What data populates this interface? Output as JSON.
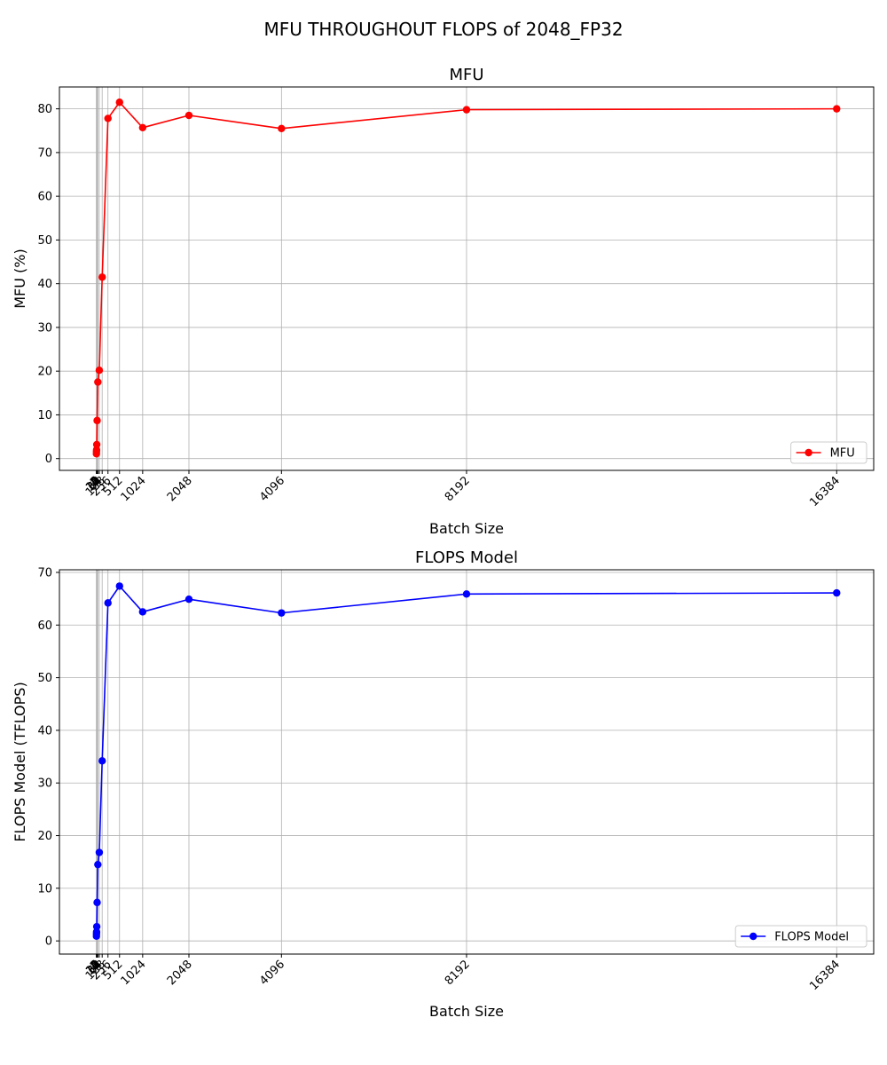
{
  "figure": {
    "suptitle": "MFU THROUGHOUT FLOPS of 2048_FP32"
  },
  "chart_data": [
    {
      "type": "line",
      "title": "MFU",
      "xlabel": "Batch Size",
      "ylabel": "MFU (%)",
      "x": [
        1,
        2,
        4,
        8,
        16,
        32,
        64,
        128,
        256,
        512,
        1024,
        2048,
        4096,
        8192,
        16384
      ],
      "x_ticks": [
        1,
        2,
        4,
        8,
        16,
        32,
        64,
        128,
        256,
        512,
        1024,
        2048,
        4096,
        8192,
        16384
      ],
      "ylim": [
        -2.7,
        85
      ],
      "y_ticks": [
        0,
        10,
        20,
        30,
        40,
        50,
        60,
        70,
        80
      ],
      "grid": true,
      "legend_position": "lower-right",
      "series": [
        {
          "name": "MFU",
          "color": "#ff0000",
          "values": [
            1.1,
            1.6,
            2.0,
            3.2,
            8.7,
            17.5,
            20.2,
            41.5,
            77.8,
            81.5,
            75.7,
            78.5,
            75.5,
            79.8,
            80.0
          ]
        }
      ]
    },
    {
      "type": "line",
      "title": "FLOPS Model",
      "xlabel": "Batch Size",
      "ylabel": "FLOPS Model (TFLOPS)",
      "x": [
        1,
        2,
        4,
        8,
        16,
        32,
        64,
        128,
        256,
        512,
        1024,
        2048,
        4096,
        8192,
        16384
      ],
      "x_ticks": [
        1,
        2,
        4,
        8,
        16,
        32,
        64,
        128,
        256,
        512,
        1024,
        2048,
        4096,
        8192,
        16384
      ],
      "ylim": [
        -2.5,
        70.5
      ],
      "y_ticks": [
        0,
        10,
        20,
        30,
        40,
        50,
        60,
        70
      ],
      "grid": true,
      "legend_position": "lower-right",
      "series": [
        {
          "name": "FLOPS Model",
          "color": "#0000ff",
          "values": [
            0.9,
            1.3,
            1.7,
            2.7,
            7.3,
            14.5,
            16.8,
            34.2,
            64.2,
            67.4,
            62.5,
            64.9,
            62.3,
            65.9,
            66.1
          ]
        }
      ]
    }
  ]
}
